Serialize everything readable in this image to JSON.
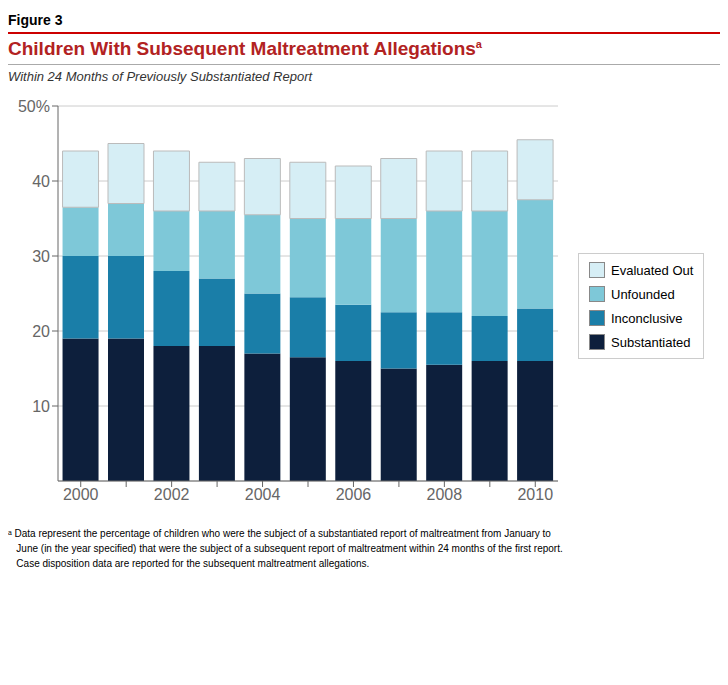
{
  "chart_data": {
    "type": "bar",
    "stacked": true,
    "title": "Children With Subsequent Maltreatment Allegations",
    "subtitle": "Within 24 Months of Previously Substantiated Report",
    "annotations": [
      "Figure 3",
      "a",
      "ᵃ Data represent the percentage of children who were the subject of a substantiated report of maltreatment from January to",
      "   June (in the year specified) that were the subject of a subsequent report of maltreatment within 24 months of the first report.",
      "   Case disposition data are reported for the subsequent maltreatment allegations."
    ],
    "categories": [
      "2000",
      null,
      "2002",
      null,
      "2004",
      null,
      "2006",
      null,
      "2008",
      null,
      "2010"
    ],
    "series": [
      {
        "name": "Substantiated",
        "color": "#0d1f3c",
        "values": [
          19.0,
          19.0,
          18.0,
          18.0,
          17.0,
          16.5,
          16.0,
          15.0,
          15.5,
          16.0,
          16.0
        ]
      },
      {
        "name": "Inconclusive",
        "color": "#1a7ea8",
        "values": [
          11.0,
          11.0,
          10.0,
          9.0,
          8.0,
          8.0,
          7.5,
          7.5,
          7.0,
          6.0,
          7.0
        ]
      },
      {
        "name": "Unfounded",
        "color": "#7ec8d8",
        "values": [
          6.5,
          7.0,
          8.0,
          9.0,
          10.5,
          10.5,
          11.5,
          12.5,
          13.5,
          14.0,
          14.5
        ]
      },
      {
        "name": "Evaluated Out",
        "color": "#d6eef5",
        "values": [
          7.5,
          8.0,
          8.0,
          6.5,
          7.5,
          7.5,
          7.0,
          8.0,
          8.0,
          8.0,
          8.0
        ]
      }
    ],
    "ylim": [
      0,
      50
    ],
    "yticks": [
      10,
      20,
      30,
      40,
      {
        "value": 50,
        "label": "50%"
      }
    ],
    "grid": true,
    "legend": "right"
  }
}
